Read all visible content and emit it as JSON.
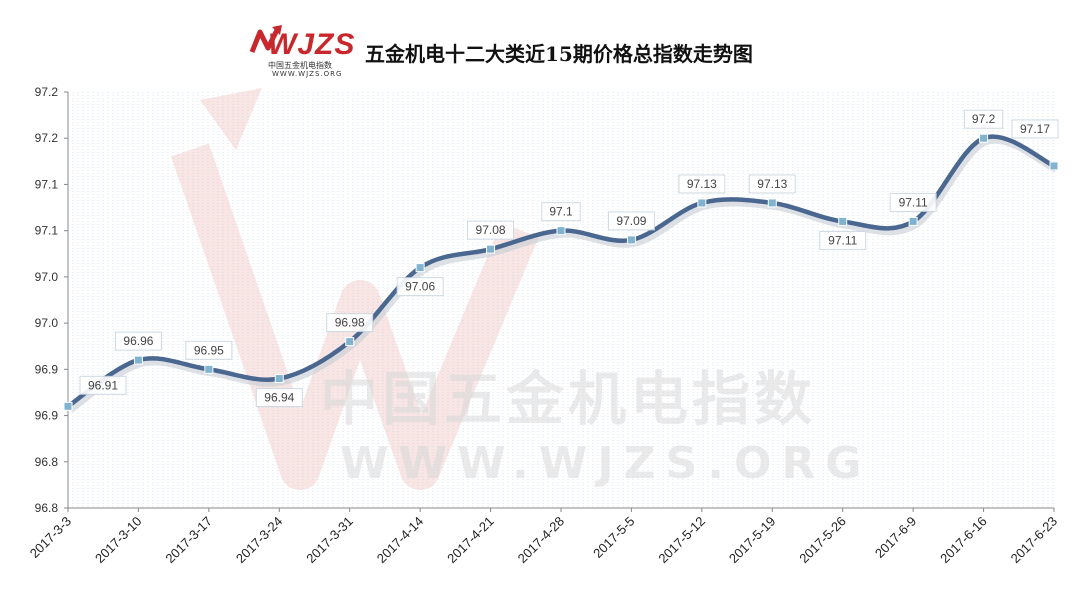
{
  "header": {
    "title": "五金机电十二大类近15期价格总指数走势图",
    "logo_text": "WJZS",
    "logo_sub": "中国五金机电指数",
    "logo_url": "WWW.WJZS.ORG"
  },
  "watermark": {
    "cn": "中国五金机电指数",
    "url": "WWW.WJZS.ORG"
  },
  "colors": {
    "line": "#4a6790",
    "marker": "#7fb3d0",
    "grid": "#b9d5e6",
    "axis": "#888888",
    "logo": "#c8282c"
  },
  "chart_data": {
    "type": "line",
    "title": "五金机电十二大类近15期价格总指数走势图",
    "xlabel": "",
    "ylabel": "",
    "categories": [
      "2017-3-3",
      "2017-3-10",
      "2017-3-17",
      "2017-3-24",
      "2017-3-31",
      "2017-4-14",
      "2017-4-21",
      "2017-4-28",
      "2017-5-5",
      "2017-5-12",
      "2017-5-19",
      "2017-5-26",
      "2017-6-9",
      "2017-6-16",
      "2017-6-23"
    ],
    "series": [
      {
        "values": [
          96.91,
          96.96,
          96.95,
          96.94,
          96.98,
          97.06,
          97.08,
          97.1,
          97.09,
          97.13,
          97.13,
          97.11,
          97.11,
          97.2,
          97.17
        ],
        "labels": [
          "96.91",
          "96.96",
          "96.95",
          "96.94",
          "96.98",
          "97.06",
          "97.08",
          "97.1",
          "97.09",
          "97.13",
          "97.13",
          "97.11",
          "97.11",
          "97.2",
          "97.17"
        ]
      }
    ],
    "yticks": [
      "96.8",
      "96.8",
      "96.9",
      "96.9",
      "97.0",
      "97.0",
      "97.1",
      "97.1",
      "97.2",
      "97.2"
    ],
    "ylim": [
      96.8,
      97.25
    ],
    "grid": true,
    "legend": "none"
  }
}
